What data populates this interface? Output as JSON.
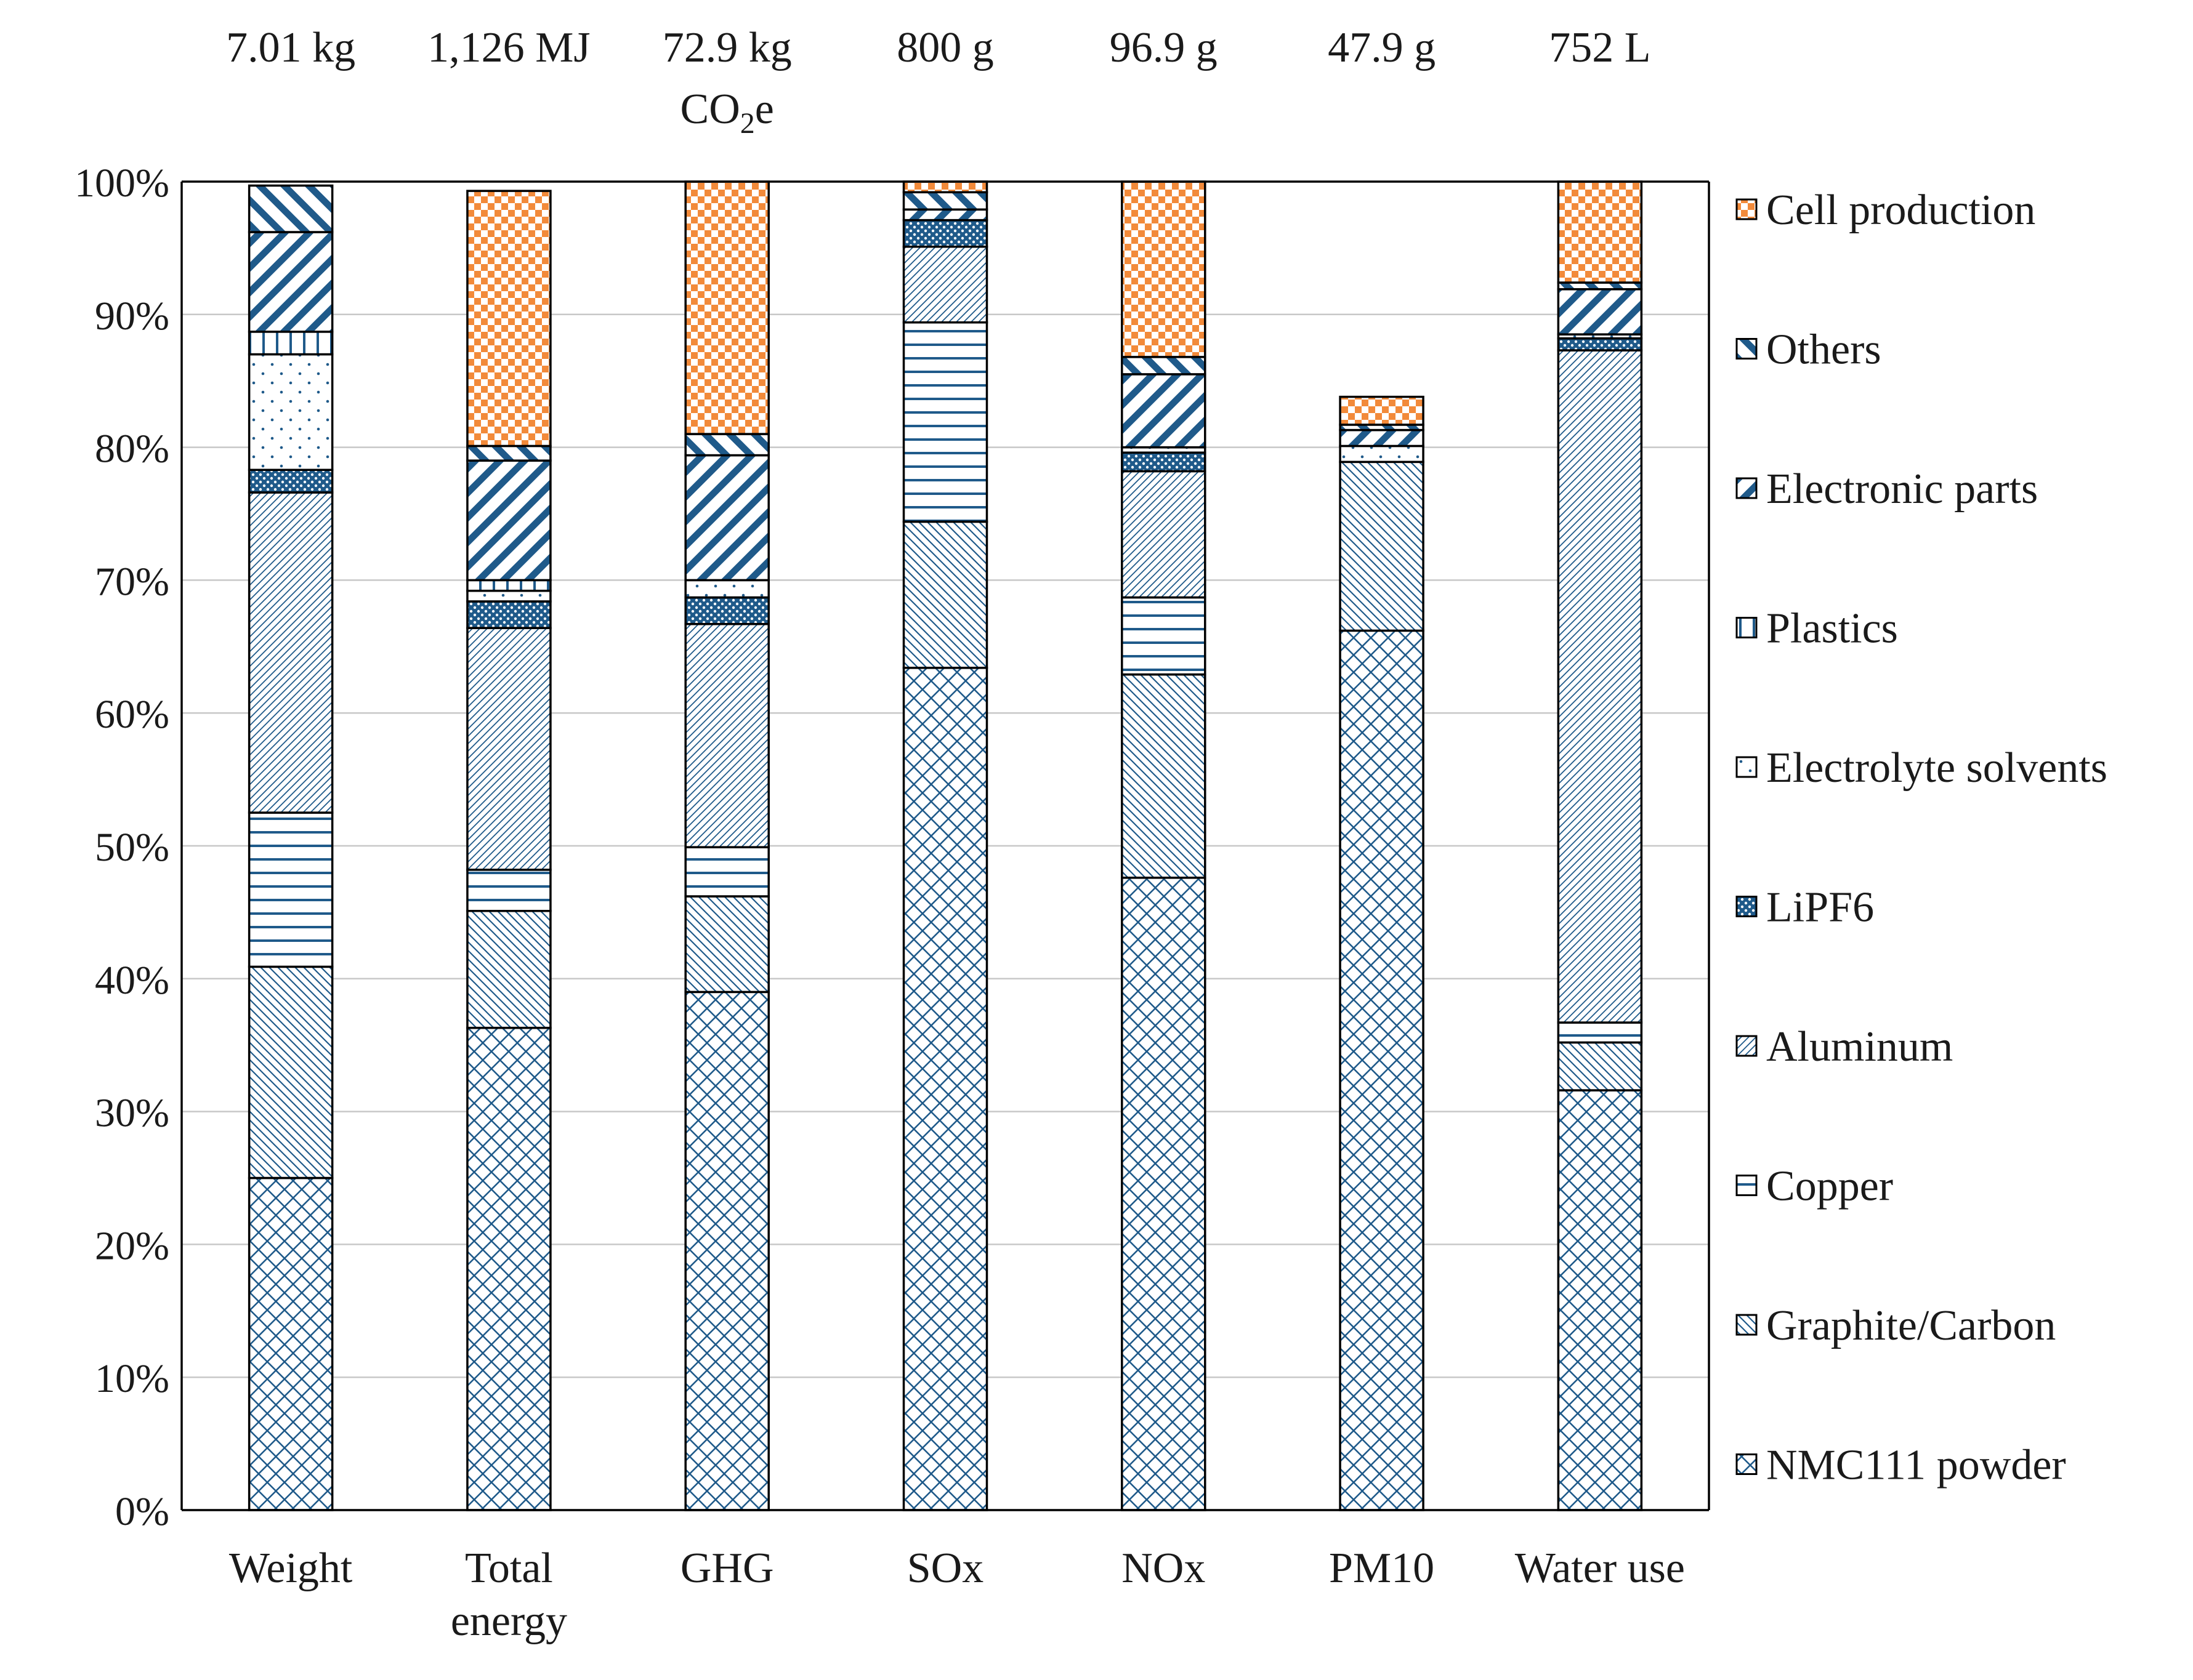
{
  "chart_data": {
    "type": "bar",
    "stacked": true,
    "normalized": true,
    "title": "",
    "xlabel": "",
    "ylabel": "",
    "ylim": [
      0,
      100
    ],
    "yticks": [
      "0%",
      "10%",
      "20%",
      "30%",
      "40%",
      "50%",
      "60%",
      "70%",
      "80%",
      "90%",
      "100%"
    ],
    "ytick_values": [
      0,
      10,
      20,
      30,
      40,
      50,
      60,
      70,
      80,
      90,
      100
    ],
    "grid": true,
    "legend_position": "right",
    "categories": [
      {
        "lines": [
          "Weight"
        ]
      },
      {
        "lines": [
          "Total",
          "energy"
        ]
      },
      {
        "lines": [
          "GHG"
        ]
      },
      {
        "lines": [
          "SOx"
        ]
      },
      {
        "lines": [
          "NOx"
        ]
      },
      {
        "lines": [
          "PM10"
        ]
      },
      {
        "lines": [
          "Water use"
        ]
      }
    ],
    "totals": [
      {
        "text": "7.01 kg"
      },
      {
        "text": "1,126 MJ"
      },
      {
        "text": "72.9 kg",
        "line2": "CO",
        "sub": "2",
        "line2_end": "e"
      },
      {
        "text": "800 g"
      },
      {
        "text": "96.9 g"
      },
      {
        "text": "47.9 g"
      },
      {
        "text": "752 L"
      }
    ],
    "series": [
      {
        "name": "NMC111 powder",
        "pattern": "crosshatch",
        "color": "#1f5a8a",
        "values": [
          25.0,
          36.3,
          39.0,
          63.4,
          47.6,
          66.2,
          31.6
        ]
      },
      {
        "name": "Graphite/Carbon",
        "pattern": "hatch-backslash-dense",
        "color": "#1f5a8a",
        "values": [
          15.9,
          8.8,
          7.2,
          11.0,
          15.3,
          12.7,
          3.6
        ]
      },
      {
        "name": "Copper",
        "pattern": "horizontal",
        "color": "#1f5a8a",
        "values": [
          11.6,
          3.1,
          3.7,
          15.0,
          5.8,
          0.0,
          1.5
        ]
      },
      {
        "name": "Aluminum",
        "pattern": "hatch-slash-fine",
        "color": "#1f5a8a",
        "values": [
          24.1,
          18.2,
          16.8,
          5.7,
          9.5,
          0.0,
          50.6
        ]
      },
      {
        "name": "LiPF6",
        "pattern": "dense-dots",
        "color": "#1f5a8a",
        "values": [
          1.7,
          2.0,
          2.0,
          2.0,
          1.4,
          0.0,
          0.9
        ]
      },
      {
        "name": "Electrolyte solvents",
        "pattern": "sparse-dots",
        "color": "#1f5a8a",
        "values": [
          8.7,
          0.8,
          1.3,
          0.0,
          0.4,
          1.2,
          0.3
        ]
      },
      {
        "name": "Plastics",
        "pattern": "vertical",
        "color": "#1f5a8a",
        "values": [
          1.7,
          0.8,
          0.0,
          0.0,
          0.0,
          0.0,
          0.0
        ]
      },
      {
        "name": "Electronic parts",
        "pattern": "wide-slash",
        "color": "#1f5a8a",
        "values": [
          7.5,
          9.0,
          9.4,
          0.8,
          5.5,
          1.2,
          3.4
        ]
      },
      {
        "name": "Others",
        "pattern": "wide-backslash",
        "color": "#1f5a8a",
        "values": [
          3.5,
          1.1,
          1.6,
          1.3,
          1.3,
          0.4,
          0.5
        ]
      },
      {
        "name": "Cell production",
        "pattern": "checker",
        "color": "#f28a3a",
        "values": [
          0.0,
          19.2,
          19.0,
          0.8,
          13.2,
          2.1,
          7.6
        ]
      }
    ]
  }
}
